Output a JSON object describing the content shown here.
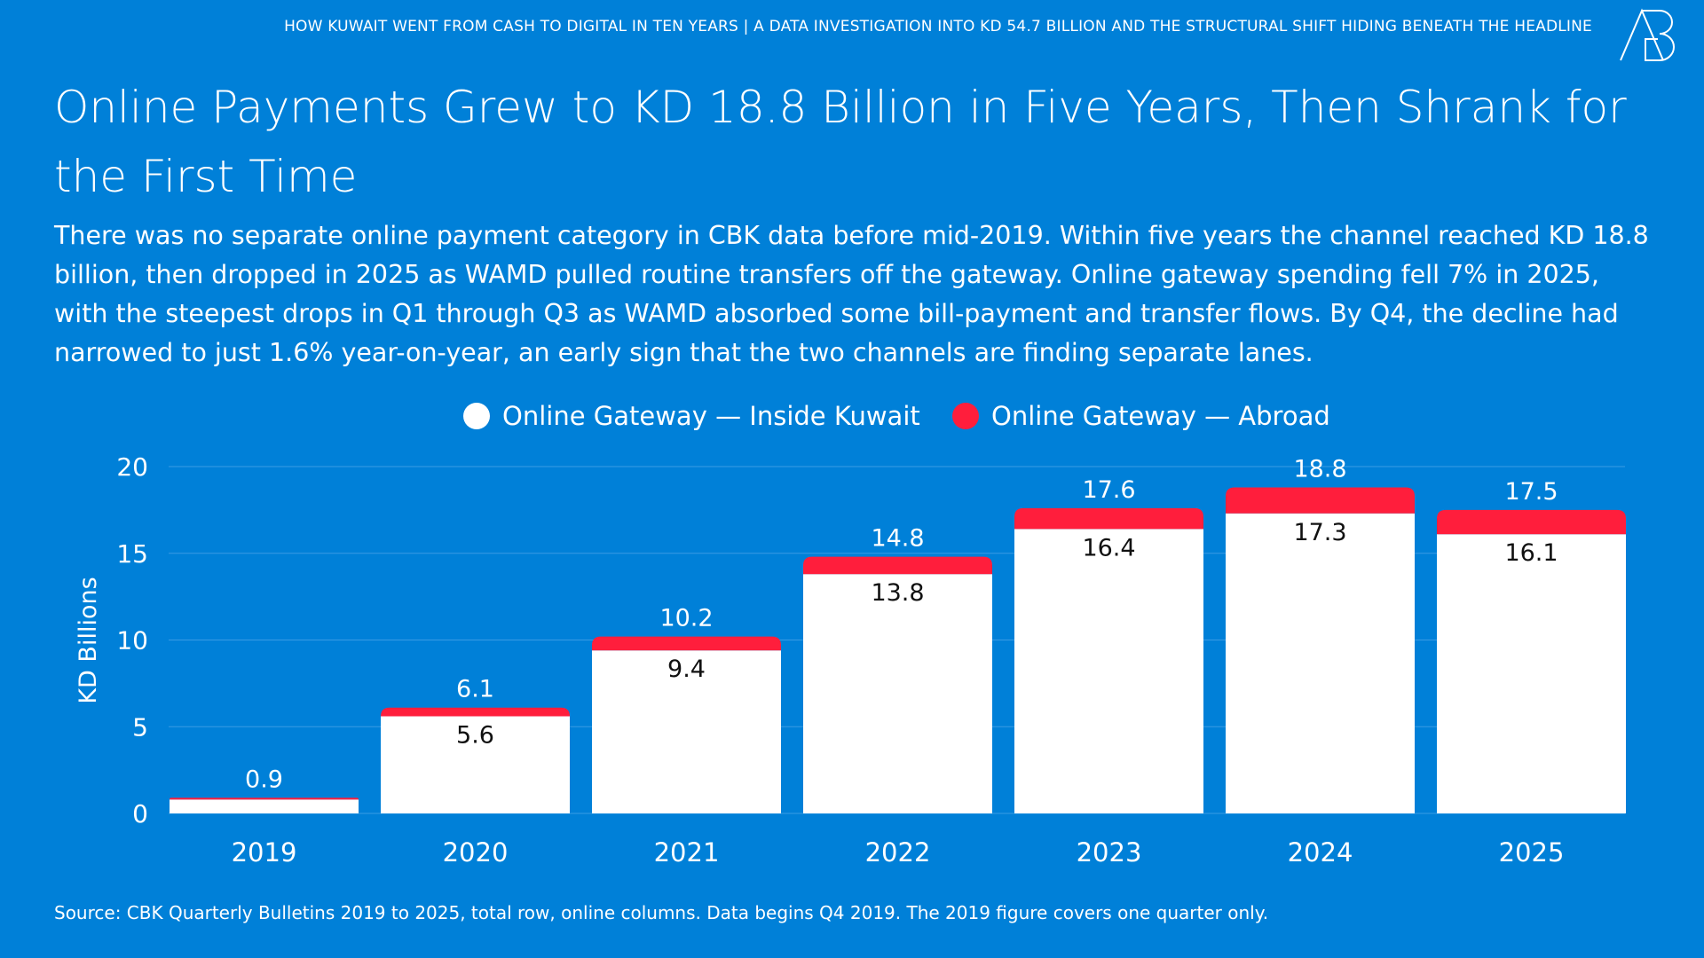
{
  "header": {
    "kicker": "HOW KUWAIT WENT FROM CASH TO DIGITAL IN TEN YEARS | A DATA INVESTIGATION INTO KD 54.7 BILLION AND THE STRUCTURAL SHIFT HIDING BENEATH THE HEADLINE",
    "logo_text": "AB"
  },
  "title": "Online Payments Grew to KD 18.8 Billion in Five Years, Then Shrank for the First Time",
  "subtitle": "There was no separate online payment category in CBK data before mid-2019. Within five years the channel reached KD 18.8 billion, then dropped in 2025 as WAMD pulled routine transfers off the gateway. Online gateway spending fell 7% in 2025, with the steepest drops in Q1 through Q3 as WAMD absorbed some bill-payment and transfer flows. By Q4, the decline had narrowed to just 1.6% year-on-year, an early sign that the two channels are finding separate lanes.",
  "source": "Source: CBK Quarterly Bulletins 2019 to 2025, total row, online columns. Data begins Q4 2019. The 2019 figure covers one quarter only.",
  "colors": {
    "background": "#0080D8",
    "inside": "#FFFFFF",
    "abroad": "#FF1E3C"
  },
  "chart_data": {
    "type": "bar",
    "stacked": true,
    "categories": [
      "2019",
      "2020",
      "2021",
      "2022",
      "2023",
      "2024",
      "2025"
    ],
    "series": [
      {
        "name": "Online Gateway — Inside Kuwait",
        "values": [
          0.8,
          5.6,
          9.4,
          13.8,
          16.4,
          17.3,
          16.1
        ],
        "color": "#FFFFFF"
      },
      {
        "name": "Online Gateway — Abroad",
        "values": [
          0.1,
          0.5,
          0.8,
          1.0,
          1.2,
          1.5,
          1.4
        ],
        "color": "#FF1E3C"
      }
    ],
    "totals": [
      "0.9",
      "6.1",
      "10.2",
      "14.8",
      "17.6",
      "18.8",
      "17.5"
    ],
    "inside_labels": [
      "",
      "5.6",
      "9.4",
      "13.8",
      "16.4",
      "17.3",
      "16.1"
    ],
    "ylabel": "KD Billions",
    "ylim": [
      0,
      20
    ],
    "yticks": [
      "0",
      "5",
      "10",
      "15",
      "20"
    ],
    "grid": true,
    "legend": "top-center"
  }
}
